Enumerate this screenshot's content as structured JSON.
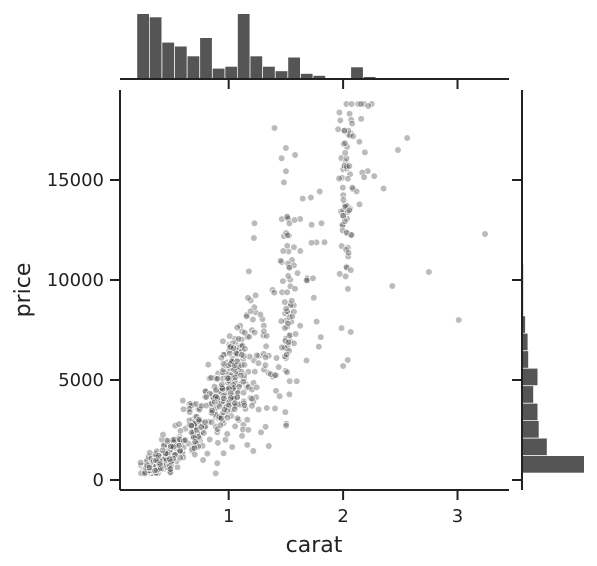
{
  "chart_data": {
    "type": "scatter",
    "title": "",
    "xlabel": "carat",
    "ylabel": "price",
    "xlim": [
      0.05,
      3.45
    ],
    "ylim": [
      -500,
      19500
    ],
    "x_ticks": [
      1,
      2,
      3
    ],
    "y_ticks": [
      0,
      5000,
      10000,
      15000
    ],
    "x_tick_labels": [
      "1",
      "2",
      "3"
    ],
    "y_tick_labels": [
      "0",
      "5000",
      "10000",
      "15000"
    ],
    "marker_color": "#555555",
    "marker_alpha": 0.4,
    "bar_color": "#555555",
    "grid": false,
    "legend": "none",
    "notable_points": [
      {
        "x": 3.24,
        "y": 12300
      },
      {
        "x": 3.01,
        "y": 8000
      },
      {
        "x": 2.75,
        "y": 10400
      },
      {
        "x": 2.43,
        "y": 9700
      },
      {
        "x": 2.56,
        "y": 17100
      },
      {
        "x": 2.48,
        "y": 16500
      },
      {
        "x": 2.22,
        "y": 18700
      },
      {
        "x": 2.04,
        "y": 6000
      },
      {
        "x": 2.0,
        "y": 5700
      },
      {
        "x": 1.5,
        "y": 16600
      },
      {
        "x": 1.4,
        "y": 17600
      },
      {
        "x": 1.22,
        "y": 12100
      }
    ],
    "clusters": [
      {
        "x": 0.3,
        "y": 520,
        "sx": 0.035,
        "sy": 120,
        "n": 120
      },
      {
        "x": 0.4,
        "y": 900,
        "sx": 0.05,
        "sy": 220,
        "n": 100
      },
      {
        "x": 0.52,
        "y": 1550,
        "sx": 0.05,
        "sy": 380,
        "n": 80
      },
      {
        "x": 0.71,
        "y": 2500,
        "sx": 0.06,
        "sy": 650,
        "n": 80
      },
      {
        "x": 0.9,
        "y": 3700,
        "sx": 0.06,
        "sy": 900,
        "n": 70
      },
      {
        "x": 1.02,
        "y": 5000,
        "sx": 0.05,
        "sy": 1400,
        "n": 110
      },
      {
        "x": 1.14,
        "y": 5600,
        "sx": 0.06,
        "sy": 1700,
        "n": 60
      },
      {
        "x": 1.3,
        "y": 6600,
        "sx": 0.08,
        "sy": 2200,
        "n": 45
      },
      {
        "x": 1.51,
        "y": 8700,
        "sx": 0.03,
        "sy": 2800,
        "n": 65
      },
      {
        "x": 1.65,
        "y": 11000,
        "sx": 0.1,
        "sy": 3000,
        "n": 30
      },
      {
        "x": 2.02,
        "y": 14400,
        "sx": 0.03,
        "sy": 2600,
        "n": 65
      },
      {
        "x": 2.2,
        "y": 15800,
        "sx": 0.1,
        "sy": 2200,
        "n": 20
      }
    ],
    "x_hist": {
      "bins": [
        0.2,
        0.31,
        0.42,
        0.53,
        0.64,
        0.75,
        0.86,
        0.97,
        1.08,
        1.19,
        1.3,
        1.41,
        1.52,
        1.63,
        1.74,
        1.85,
        1.96,
        2.07,
        2.18,
        2.29,
        2.4,
        2.51,
        2.62,
        2.73,
        2.84,
        2.95,
        3.06,
        3.17,
        3.28
      ],
      "counts": [
        100,
        95,
        56,
        50,
        35,
        63,
        16,
        19,
        100,
        35,
        19,
        12,
        33,
        8,
        5,
        0,
        0,
        18,
        3,
        0,
        0,
        0,
        0,
        0,
        0,
        0,
        0,
        1
      ]
    },
    "y_hist": {
      "bins": [
        326,
        1200,
        2074,
        2948,
        3822,
        4696,
        5570,
        6444,
        7318,
        8192,
        9066,
        9940,
        10814,
        11688,
        12562,
        13436,
        14310,
        15184,
        16058,
        16932,
        17806,
        18680
      ],
      "counts": [
        100,
        40,
        27,
        25,
        18,
        25,
        10,
        9,
        5,
        2,
        2,
        2,
        1,
        1,
        1,
        1,
        1,
        1,
        1,
        1,
        1
      ]
    }
  }
}
